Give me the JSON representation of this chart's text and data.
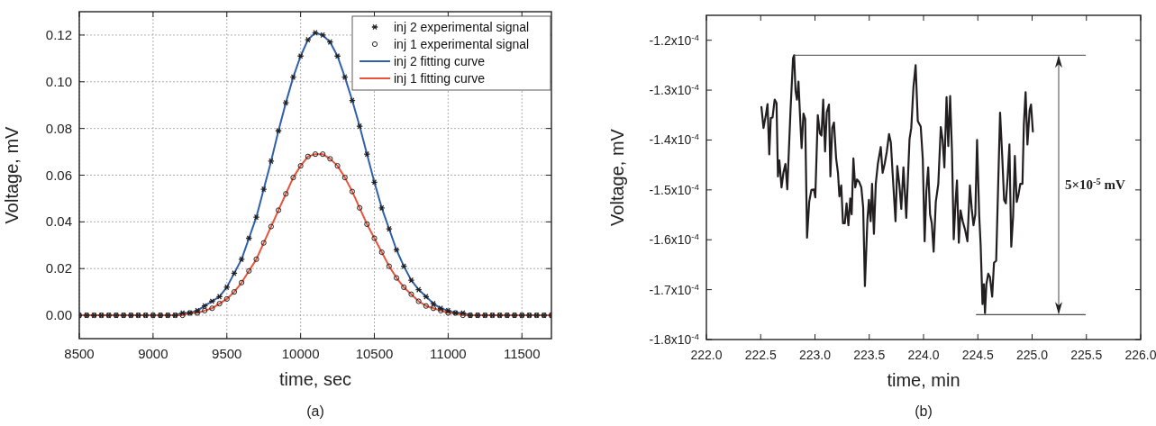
{
  "chart_data": [
    {
      "type": "line",
      "xlabel": "time, sec",
      "ylabel": "Voltage, mV",
      "annotations": [
        "(a)"
      ],
      "xlim": [
        8500,
        11700
      ],
      "ylim": [
        -0.01,
        0.13
      ],
      "xticks": [
        8500,
        9000,
        9500,
        10000,
        10500,
        11000,
        11500
      ],
      "yticks": [
        {
          "value": 0,
          "label": "0.00"
        },
        {
          "value": 0.02,
          "label": "0.02"
        },
        {
          "value": 0.04,
          "label": "0.04"
        },
        {
          "value": 0.06,
          "label": "0.06"
        },
        {
          "value": 0.08,
          "label": "0.08"
        },
        {
          "value": 0.1,
          "label": "0.10"
        },
        {
          "value": 0.12,
          "label": "0.12"
        }
      ],
      "grid": true,
      "legend": "top right",
      "x": [
        8500,
        8550,
        8600,
        8650,
        8700,
        8750,
        8800,
        8850,
        8900,
        8950,
        9000,
        9050,
        9100,
        9150,
        9200,
        9250,
        9300,
        9350,
        9400,
        9450,
        9500,
        9550,
        9600,
        9650,
        9700,
        9750,
        9800,
        9850,
        9900,
        9950,
        10000,
        10050,
        10100,
        10150,
        10200,
        10250,
        10300,
        10350,
        10400,
        10450,
        10500,
        10550,
        10600,
        10650,
        10700,
        10750,
        10800,
        10850,
        10900,
        10950,
        11000,
        11050,
        11100,
        11150,
        11200,
        11250,
        11300,
        11350,
        11400,
        11450,
        11500,
        11550,
        11600,
        11650,
        11700
      ],
      "series": [
        {
          "name": "inj 2 experimental signal",
          "type": "scatter",
          "marker": "cross",
          "color": "#222222",
          "values": [
            0,
            0,
            0,
            0,
            0,
            0,
            0,
            0,
            0,
            0,
            0,
            0,
            0,
            0,
            0.001,
            0.001,
            0.002,
            0.004,
            0.006,
            0.008,
            0.012,
            0.018,
            0.024,
            0.033,
            0.042,
            0.054,
            0.066,
            0.079,
            0.091,
            0.102,
            0.111,
            0.118,
            0.121,
            0.12,
            0.117,
            0.111,
            0.102,
            0.092,
            0.081,
            0.069,
            0.057,
            0.046,
            0.037,
            0.028,
            0.021,
            0.015,
            0.011,
            0.008,
            0.005,
            0.003,
            0.002,
            0.001,
            0.001,
            0,
            0,
            0,
            0,
            0,
            0,
            0,
            0,
            0,
            0,
            0,
            0
          ]
        },
        {
          "name": "inj 1 experimental signal",
          "type": "scatter",
          "marker": "circle",
          "color": "#222222",
          "values": [
            0,
            0,
            0,
            0,
            0,
            0,
            0,
            0,
            0,
            0,
            0,
            0,
            0,
            0,
            0,
            0.001,
            0.001,
            0.002,
            0.003,
            0.005,
            0.007,
            0.01,
            0.014,
            0.019,
            0.024,
            0.031,
            0.038,
            0.045,
            0.052,
            0.059,
            0.064,
            0.068,
            0.069,
            0.069,
            0.067,
            0.064,
            0.059,
            0.053,
            0.046,
            0.039,
            0.033,
            0.027,
            0.021,
            0.016,
            0.012,
            0.009,
            0.006,
            0.004,
            0.003,
            0.002,
            0.001,
            0.001,
            0,
            0,
            0,
            0,
            0,
            0,
            0,
            0,
            0,
            0,
            0,
            0,
            0
          ]
        },
        {
          "name": "inj 2 fitting curve",
          "type": "line",
          "color": "#2f5fad",
          "values": [
            null,
            null,
            null,
            null,
            null,
            null,
            null,
            null,
            null,
            null,
            null,
            null,
            0,
            0,
            0.001,
            0.001,
            0.002,
            0.004,
            0.006,
            0.008,
            0.012,
            0.018,
            0.024,
            0.033,
            0.042,
            0.054,
            0.066,
            0.079,
            0.091,
            0.102,
            0.111,
            0.118,
            0.121,
            0.12,
            0.117,
            0.111,
            0.102,
            0.092,
            0.081,
            0.069,
            0.057,
            0.046,
            0.037,
            0.028,
            0.021,
            0.015,
            0.011,
            0.008,
            0.005,
            0.003,
            0.002,
            0.001,
            0.001,
            0,
            0,
            null,
            null,
            null,
            null,
            null,
            null,
            null,
            null,
            null,
            null
          ]
        },
        {
          "name": "inj 1 fitting curve",
          "type": "line",
          "color": "#e8533a",
          "values": [
            0,
            0,
            0,
            0,
            0,
            0,
            0,
            0,
            0,
            0,
            0,
            0,
            0,
            0,
            0,
            0.001,
            0.001,
            0.002,
            0.003,
            0.005,
            0.007,
            0.01,
            0.014,
            0.019,
            0.024,
            0.031,
            0.038,
            0.045,
            0.052,
            0.059,
            0.064,
            0.068,
            0.069,
            0.069,
            0.067,
            0.064,
            0.059,
            0.053,
            0.046,
            0.039,
            0.033,
            0.027,
            0.021,
            0.016,
            0.012,
            0.009,
            0.006,
            0.004,
            0.003,
            0.002,
            0.001,
            0.001,
            0,
            0,
            0,
            0,
            0,
            0,
            0,
            0,
            0,
            0,
            0,
            0,
            0
          ]
        }
      ]
    },
    {
      "type": "line",
      "xlabel": "time, min",
      "ylabel": "Voltage, mV",
      "annotations": [
        "5×10$^{-5}$ mV",
        "(b)"
      ],
      "ref_lines": [
        {
          "axis": "y",
          "value": -0.000123,
          "color": "#444444"
        },
        {
          "axis": "y",
          "value": -0.000175,
          "color": "#222222"
        }
      ],
      "xlim": [
        222,
        226
      ],
      "ylim": [
        -0.00018,
        -0.000115
      ],
      "xticks": [
        {
          "value": 222,
          "label": "222.0"
        },
        {
          "value": 222.5,
          "label": "222.5"
        },
        {
          "value": 223,
          "label": "223.0"
        },
        {
          "value": 223.5,
          "label": "223.5"
        },
        {
          "value": 224,
          "label": "224.0"
        },
        {
          "value": 224.5,
          "label": "224.5"
        },
        {
          "value": 225,
          "label": "225.0"
        },
        {
          "value": 225.5,
          "label": "225.5"
        },
        {
          "value": 226,
          "label": "226.0"
        }
      ],
      "yticks": [
        {
          "value": -0.00018,
          "label": "-1.8x10$^{-4}$"
        },
        {
          "value": -0.00017,
          "label": "-1.7x10$^{-4}$"
        },
        {
          "value": -0.00016,
          "label": "-1.6x10$^{-4}$"
        },
        {
          "value": -0.00015,
          "label": "-1.5x10$^{-4}$"
        },
        {
          "value": -0.00014,
          "label": "-1.4x10$^{-4}$"
        },
        {
          "value": -0.00013,
          "label": "-1.3x10$^{-4}$"
        },
        {
          "value": -0.00012,
          "label": "-1.2x10$^{-4}$"
        }
      ],
      "series": [
        {
          "color": "#231f20",
          "x": [
            222.507,
            222.526,
            222.55,
            222.563,
            222.579,
            222.593,
            222.609,
            222.629,
            222.646,
            222.659,
            222.672,
            222.692,
            222.709,
            222.728,
            222.745,
            222.775,
            222.798,
            222.808,
            222.821,
            222.834,
            222.848,
            222.864,
            222.877,
            222.894,
            222.91,
            222.927,
            222.947,
            222.967,
            222.99,
            223.003,
            223.026,
            223.046,
            223.06,
            223.076,
            223.093,
            223.109,
            223.129,
            223.142,
            223.159,
            223.175,
            223.195,
            223.212,
            223.225,
            223.242,
            223.258,
            223.275,
            223.291,
            223.308,
            223.325,
            223.338,
            223.354,
            223.371,
            223.387,
            223.407,
            223.427,
            223.444,
            223.46,
            223.483,
            223.497,
            223.513,
            223.526,
            223.543,
            223.56,
            223.579,
            223.606,
            223.623,
            223.642,
            223.662,
            223.682,
            223.699,
            223.715,
            223.742,
            223.758,
            223.778,
            223.795,
            223.815,
            223.841,
            223.871,
            223.887,
            223.907,
            223.927,
            223.947,
            223.974,
            223.993,
            224.01,
            224.026,
            224.043,
            224.06,
            224.076,
            224.093,
            224.113,
            224.136,
            224.159,
            224.175,
            224.192,
            224.212,
            224.228,
            224.245,
            224.262,
            224.278,
            224.295,
            224.308,
            224.325,
            224.341,
            224.361,
            224.384,
            224.404,
            224.427,
            224.444,
            224.46,
            224.477,
            224.493,
            224.513,
            224.526,
            224.543,
            224.556,
            224.566,
            224.579,
            224.596,
            224.612,
            224.632,
            224.649,
            224.669,
            224.705,
            224.725,
            224.742,
            224.758,
            224.775,
            224.791,
            224.808,
            224.825,
            224.841,
            224.858,
            224.874,
            224.891,
            224.911,
            224.924,
            224.94,
            224.957,
            224.977,
            224.99,
            225.007
          ],
          "values": [
            -0.0001334,
            -0.0001376,
            -0.0001347,
            -0.0001328,
            -0.0001429,
            -0.0001356,
            -0.0001355,
            -0.0001319,
            -0.0001326,
            -0.0001473,
            -0.0001441,
            -0.0001495,
            -0.0001466,
            -0.0001448,
            -0.0001499,
            -0.000134,
            -0.0001236,
            -0.000123,
            -0.0001301,
            -0.0001319,
            -0.0001283,
            -0.0001358,
            -0.0001416,
            -0.0001347,
            -0.0001358,
            -0.0001596,
            -0.0001524,
            -0.00015,
            -0.0001499,
            -0.0001515,
            -0.000135,
            -0.0001387,
            -0.0001391,
            -0.0001319,
            -0.0001423,
            -0.0001344,
            -0.0001329,
            -0.0001473,
            -0.0001376,
            -0.0001365,
            -0.0001437,
            -0.0001466,
            -0.0001513,
            -0.0001491,
            -0.0001567,
            -0.0001567,
            -0.0001527,
            -0.0001571,
            -0.0001517,
            -0.0001549,
            -0.0001437,
            -0.0001495,
            -0.0001479,
            -0.0001484,
            -0.0001495,
            -0.0001535,
            -0.0001693,
            -0.000156,
            -0.000152,
            -0.0001563,
            -0.0001488,
            -0.0001588,
            -0.0001488,
            -0.0001448,
            -0.0001414,
            -0.0001466,
            -0.0001448,
            -0.0001423,
            -0.0001388,
            -0.0001405,
            -0.0001466,
            -0.0001563,
            -0.0001452,
            -0.0001491,
            -0.0001538,
            -0.0001455,
            -0.0001556,
            -0.0001398,
            -0.0001376,
            -0.0001294,
            -0.000125,
            -0.0001362,
            -0.0001373,
            -0.0001437,
            -0.0001603,
            -0.0001502,
            -0.0001455,
            -0.0001549,
            -0.0001567,
            -0.0001624,
            -0.0001524,
            -0.0001488,
            -0.0001374,
            -0.0001398,
            -0.0001455,
            -0.0001314,
            -0.0001412,
            -0.0001312,
            -0.0001423,
            -0.0001599,
            -0.0001524,
            -0.0001481,
            -0.0001606,
            -0.0001541,
            -0.0001563,
            -0.0001581,
            -0.0001603,
            -0.0001491,
            -0.0001538,
            -0.0001571,
            -0.0001549,
            -0.00014,
            -0.0001553,
            -0.000161,
            -0.0001729,
            -0.0001689,
            -0.0001747,
            -0.0001689,
            -0.0001668,
            -0.0001675,
            -0.0001714,
            -0.0001646,
            -0.0001642,
            -0.0001345,
            -0.0001434,
            -0.000152,
            -0.0001527,
            -0.0001473,
            -0.0001409,
            -0.0001614,
            -0.0001553,
            -0.0001432,
            -0.0001524,
            -0.000151,
            -0.0001488,
            -0.0001488,
            -0.0001369,
            -0.0001304,
            -0.0001409,
            -0.000134,
            -0.0001329,
            -0.0001383
          ]
        }
      ]
    }
  ]
}
